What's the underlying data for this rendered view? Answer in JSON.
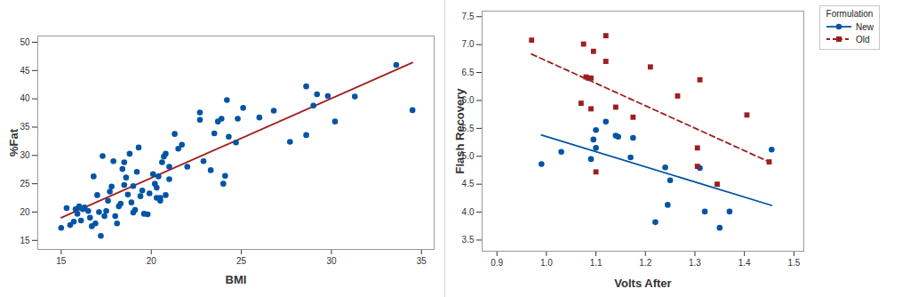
{
  "chart_data": [
    {
      "type": "scatter",
      "x_label": "BMI",
      "y_label": "%Fat",
      "xlim": [
        13.7,
        35.7
      ],
      "ylim": [
        13.4,
        51.1
      ],
      "xticks": [
        15,
        20,
        25,
        30,
        35
      ],
      "yticks": [
        15,
        20,
        25,
        30,
        35,
        40,
        45,
        50
      ],
      "grid": false,
      "series": [
        {
          "color": "#0054a6",
          "marker": "circle",
          "x": [
            15,
            15.3,
            15.5,
            15.7,
            15.8,
            15.9,
            16,
            16.1,
            16.2,
            16.3,
            16.5,
            16.6,
            16.7,
            16.8,
            16.9,
            17,
            17.1,
            17.2,
            17.3,
            17.4,
            17.5,
            17.6,
            17.7,
            17.8,
            17.9,
            18,
            18.1,
            18.2,
            18.3,
            18.4,
            18.5,
            18.5,
            18.6,
            18.7,
            18.8,
            18.9,
            19,
            19,
            19.1,
            19.2,
            19.3,
            19.4,
            19.5,
            19.6,
            19.8,
            19.9,
            20.1,
            20.2,
            20.3,
            20.3,
            20.4,
            20.5,
            20.5,
            20.6,
            20.7,
            20.8,
            20.8,
            21,
            21,
            21.3,
            21.5,
            21.7,
            22,
            22.7,
            22.7,
            22.9,
            23.3,
            23.5,
            23.7,
            23.9,
            24,
            24.1,
            24.2,
            24.3,
            24.7,
            24.8,
            25.1,
            26,
            26.8,
            27.7,
            28.6,
            28.6,
            29,
            29.2,
            29.8,
            30.2,
            31.3,
            33.6,
            34.5
          ],
          "y": [
            17.2,
            20.7,
            17.7,
            18.3,
            20.5,
            19.7,
            21,
            18.5,
            20.5,
            20.8,
            20.2,
            19,
            17.5,
            26.3,
            18,
            23,
            20,
            15.8,
            29.9,
            19.3,
            20.2,
            22,
            23.6,
            24.5,
            29,
            19.3,
            18,
            21,
            21.5,
            27.6,
            28.8,
            24.8,
            26.1,
            23.1,
            30.3,
            21.7,
            24.6,
            19.9,
            20.4,
            27.1,
            31.4,
            22.8,
            23.8,
            19.7,
            19.6,
            23.3,
            26.7,
            25,
            22.5,
            24.3,
            26.3,
            22,
            22.5,
            28.8,
            29.8,
            30.3,
            23,
            25.8,
            28,
            33.8,
            31.2,
            31.9,
            28,
            36.3,
            37.6,
            29,
            27.4,
            33.9,
            36,
            36.5,
            25,
            26.4,
            39.8,
            33.3,
            32.3,
            36.5,
            38.4,
            36.7,
            37.9,
            32.4,
            42.2,
            33.6,
            38.8,
            40.8,
            40.5,
            36,
            40.4,
            46,
            38
          ],
          "fit": {
            "color": "#a31f1f",
            "line_style": "solid",
            "x": [
              15,
              34.5
            ],
            "y": [
              19,
              46.4
            ]
          }
        }
      ]
    },
    {
      "type": "scatter",
      "x_label": "Volts After",
      "y_label": "Flash Recovery",
      "xlim": [
        0.87,
        1.52
      ],
      "ylim": [
        3.3,
        7.6
      ],
      "xticks": [
        0.9,
        {
          "value": 1,
          "label": "1.0"
        },
        1.1,
        1.2,
        1.3,
        1.4,
        1.5
      ],
      "yticks": [
        3.5,
        {
          "value": 4,
          "label": "4.0"
        },
        4.5,
        {
          "value": 5,
          "label": "5.0"
        },
        5.5,
        {
          "value": 6,
          "label": "6.0"
        },
        6.5,
        {
          "value": 7,
          "label": "7.0"
        },
        7.5
      ],
      "grid": false,
      "legend": "right",
      "legend_title": "Formulation",
      "series": [
        {
          "name": "New",
          "color": "#0054a6",
          "marker": "circle",
          "line_style": "solid",
          "x": [
            0.99,
            1.03,
            1.09,
            1.095,
            1.1,
            1.1,
            1.12,
            1.14,
            1.145,
            1.17,
            1.175,
            1.22,
            1.24,
            1.245,
            1.25,
            1.31,
            1.32,
            1.35,
            1.37,
            1.455
          ],
          "y": [
            4.86,
            5.08,
            4.95,
            5.3,
            5.15,
            5.47,
            5.62,
            5.37,
            5.35,
            4.98,
            5.33,
            3.82,
            4.8,
            4.13,
            4.57,
            4.79,
            4.01,
            3.72,
            4.01,
            5.12
          ],
          "fit": {
            "x": [
              0.99,
              1.455
            ],
            "y": [
              5.38,
              4.12
            ]
          }
        },
        {
          "name": "Old",
          "color": "#9c1f1f",
          "marker": "square",
          "line_style": "dashed",
          "x": [
            0.97,
            1.07,
            1.075,
            1.08,
            1.085,
            1.09,
            1.09,
            1.095,
            1.1,
            1.12,
            1.12,
            1.14,
            1.175,
            1.21,
            1.265,
            1.305,
            1.305,
            1.31,
            1.345,
            1.405,
            1.45
          ],
          "y": [
            7.08,
            5.95,
            7.01,
            6.42,
            6.4,
            6.4,
            5.85,
            6.88,
            4.72,
            7.16,
            6.7,
            5.88,
            5.7,
            6.6,
            6.08,
            5.15,
            4.82,
            6.37,
            4.5,
            5.74,
            4.9
          ],
          "fit": {
            "x": [
              0.97,
              1.45
            ],
            "y": [
              6.83,
              4.9
            ]
          }
        }
      ]
    }
  ]
}
